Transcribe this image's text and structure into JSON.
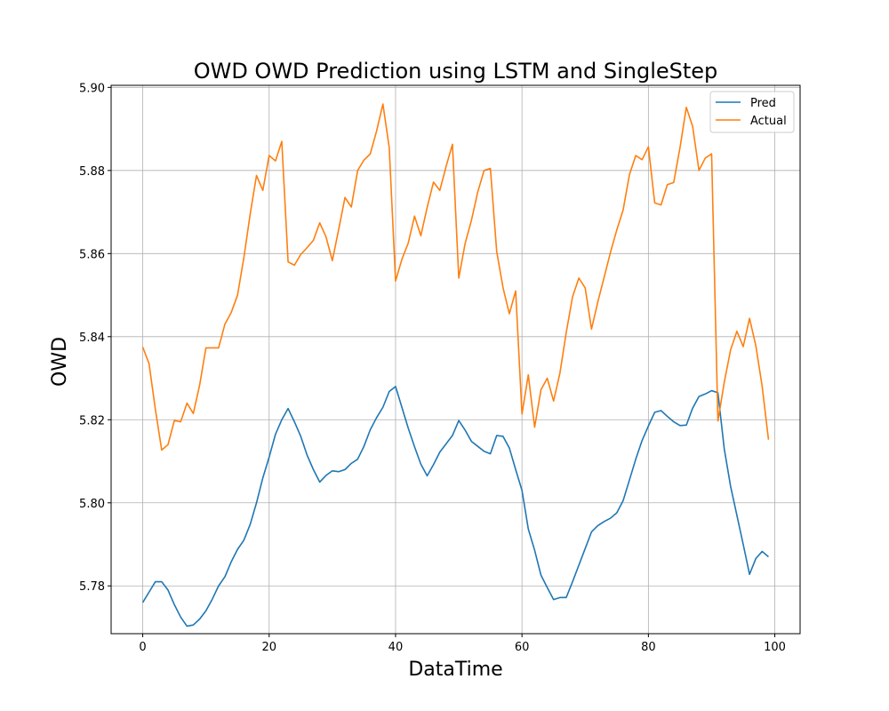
{
  "chart_data": {
    "type": "line",
    "title": "OWD OWD Prediction using LSTM and SingleStep",
    "xlabel": "DataTime",
    "ylabel": "OWD",
    "xlim": [
      -5,
      104
    ],
    "ylim": [
      5.7685,
      5.9005
    ],
    "xticks": [
      0,
      20,
      40,
      60,
      80,
      100
    ],
    "yticks": [
      5.78,
      5.8,
      5.82,
      5.84,
      5.86,
      5.88,
      5.9
    ],
    "grid": true,
    "legend_position": "upper right",
    "series": [
      {
        "name": "Pred",
        "color": "#1f77b4",
        "values": [
          5.776,
          5.7785,
          5.781,
          5.781,
          5.779,
          5.7755,
          5.7725,
          5.7703,
          5.7706,
          5.772,
          5.774,
          5.7768,
          5.78,
          5.7822,
          5.7858,
          5.7888,
          5.791,
          5.7948,
          5.8,
          5.806,
          5.811,
          5.8165,
          5.82,
          5.8227,
          5.8195,
          5.816,
          5.8115,
          5.808,
          5.805,
          5.8066,
          5.8077,
          5.8075,
          5.808,
          5.8095,
          5.8105,
          5.8136,
          5.8176,
          5.8205,
          5.823,
          5.8268,
          5.828,
          5.823,
          5.818,
          5.8135,
          5.8093,
          5.8065,
          5.8092,
          5.8122,
          5.8142,
          5.8162,
          5.8198,
          5.8175,
          5.8148,
          5.8136,
          5.8124,
          5.8118,
          5.8162,
          5.816,
          5.8132,
          5.808,
          5.803,
          5.7937,
          5.7886,
          5.7826,
          5.7796,
          5.7767,
          5.7772,
          5.7772,
          5.781,
          5.785,
          5.789,
          5.793,
          5.7945,
          5.7955,
          5.7963,
          5.7976,
          5.8005,
          5.8055,
          5.8105,
          5.815,
          5.8185,
          5.8218,
          5.8222,
          5.8208,
          5.8195,
          5.8186,
          5.8187,
          5.8228,
          5.8256,
          5.8262,
          5.827,
          5.8265,
          5.813,
          5.804,
          5.797,
          5.79,
          5.7828,
          5.7866,
          5.7883,
          5.787
        ]
      },
      {
        "name": "Actual",
        "color": "#ff7f0e",
        "values": [
          5.8375,
          5.8335,
          5.8225,
          5.8127,
          5.814,
          5.8198,
          5.8195,
          5.824,
          5.8215,
          5.8283,
          5.8373,
          5.8373,
          5.8373,
          5.843,
          5.8458,
          5.85,
          5.859,
          5.8695,
          5.8788,
          5.8752,
          5.8836,
          5.8823,
          5.887,
          5.858,
          5.8572,
          5.8598,
          5.8614,
          5.8632,
          5.8674,
          5.864,
          5.8583,
          5.8658,
          5.8735,
          5.8712,
          5.88,
          5.8825,
          5.884,
          5.8895,
          5.896,
          5.8855,
          5.8534,
          5.8586,
          5.8625,
          5.869,
          5.8643,
          5.8711,
          5.8772,
          5.8752,
          5.881,
          5.8863,
          5.8541,
          5.8624,
          5.868,
          5.8748,
          5.88,
          5.8805,
          5.8605,
          5.8518,
          5.8455,
          5.851,
          5.8214,
          5.8308,
          5.8182,
          5.8272,
          5.83,
          5.8245,
          5.8312,
          5.841,
          5.8496,
          5.8541,
          5.8517,
          5.8418,
          5.8484,
          5.8543,
          5.8603,
          5.8657,
          5.8705,
          5.879,
          5.8836,
          5.8826,
          5.8857,
          5.8722,
          5.8717,
          5.8766,
          5.8771,
          5.8855,
          5.8952,
          5.8906,
          5.88,
          5.883,
          5.884,
          5.8197,
          5.829,
          5.8368,
          5.8413,
          5.8376,
          5.8444,
          5.8378,
          5.828,
          5.8152
        ]
      }
    ]
  }
}
